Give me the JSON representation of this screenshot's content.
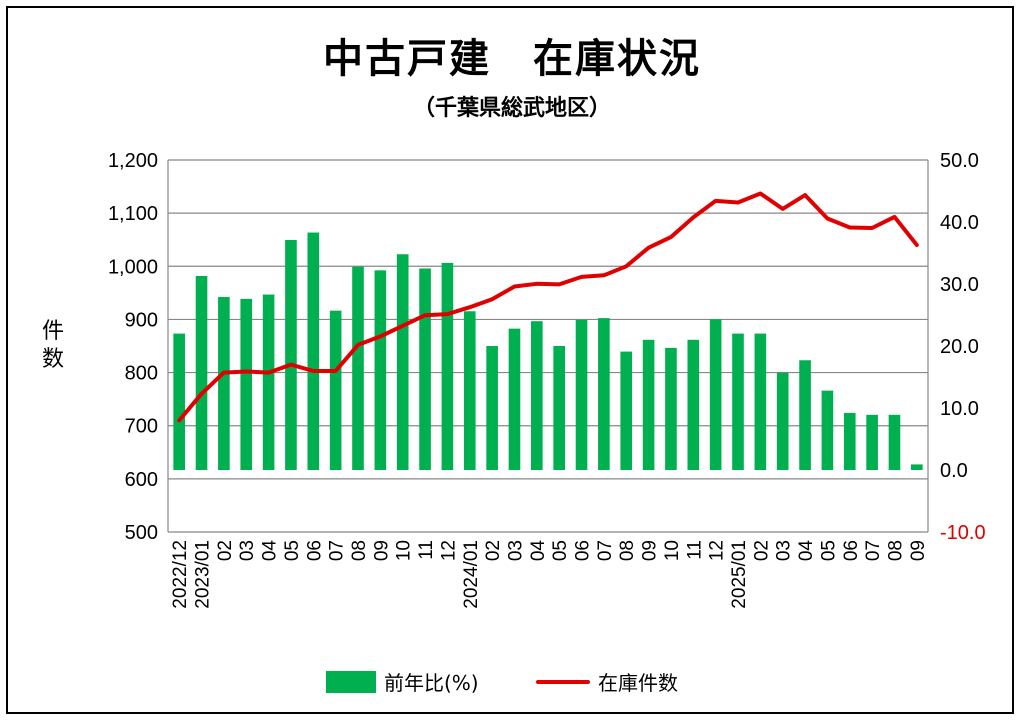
{
  "chart_data": {
    "type": "bar+line",
    "title": "中古戸建　在庫状況",
    "subtitle": "（千葉県総武地区）",
    "ylabel": "件数",
    "left_axis": {
      "min": 500,
      "max": 1200,
      "step": 100,
      "tick_labels": [
        "500",
        "600",
        "700",
        "800",
        "900",
        "1,000",
        "1,100",
        "1,200"
      ]
    },
    "right_axis": {
      "min": -10,
      "max": 50,
      "step": 10,
      "tick_labels": [
        "-10.0",
        "0.0",
        "10.0",
        "20.0",
        "30.0",
        "40.0",
        "50.0"
      ],
      "negative_color": "#e00000"
    },
    "grid": true,
    "categories": [
      "2022/12",
      "2023/01",
      "02",
      "03",
      "04",
      "05",
      "06",
      "07",
      "08",
      "09",
      "10",
      "11",
      "12",
      "2024/01",
      "02",
      "03",
      "04",
      "05",
      "06",
      "07",
      "08",
      "09",
      "10",
      "11",
      "12",
      "2025/01",
      "02",
      "03",
      "04",
      "05",
      "06",
      "07",
      "08",
      "09"
    ],
    "series": [
      {
        "name": "前年比(%)",
        "type": "bar",
        "axis": "right",
        "color": "#00b050",
        "values": [
          22.0,
          31.3,
          27.9,
          27.6,
          28.3,
          37.1,
          38.3,
          25.7,
          32.8,
          32.2,
          34.8,
          32.5,
          33.4,
          25.6,
          20.0,
          22.8,
          24.0,
          20.0,
          24.2,
          24.5,
          19.1,
          21.0,
          19.7,
          21.0,
          24.3,
          22.0,
          22.0,
          15.7,
          17.7,
          12.8,
          9.2,
          8.9,
          8.9,
          0.9
        ]
      },
      {
        "name": "在庫件数",
        "type": "line",
        "axis": "left",
        "color": "#e00000",
        "values": [
          710,
          760,
          800,
          802,
          800,
          815,
          803,
          803,
          852,
          868,
          888,
          908,
          910,
          923,
          938,
          962,
          967,
          966,
          980,
          983,
          1000,
          1035,
          1055,
          1092,
          1123,
          1120,
          1137,
          1108,
          1134,
          1090,
          1073,
          1072,
          1093,
          1040
        ]
      }
    ],
    "legend": {
      "position": "bottom",
      "items": [
        "前年比(%)",
        "在庫件数"
      ]
    }
  }
}
